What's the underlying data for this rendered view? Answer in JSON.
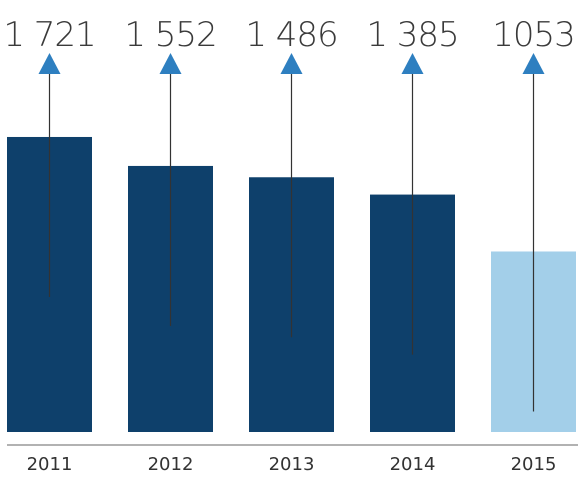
{
  "chart_data": {
    "type": "bar",
    "categories": [
      "2011",
      "2012",
      "2013",
      "2014",
      "2015"
    ],
    "values": [
      1721,
      1552,
      1486,
      1385,
      1053
    ],
    "value_labels": [
      "1 721",
      "1 552",
      "1 486",
      "1 385",
      "1053"
    ],
    "title": "",
    "xlabel": "",
    "ylabel": "",
    "ylim": [
      0,
      2520
    ],
    "grid": false,
    "legend": "none",
    "colors": {
      "bar": "#0e406b",
      "highlight_bar": "#a3cfe9",
      "arrow": "#2e7fc0",
      "line": "#333333",
      "axis": "#999999"
    },
    "highlight_index": 4
  }
}
